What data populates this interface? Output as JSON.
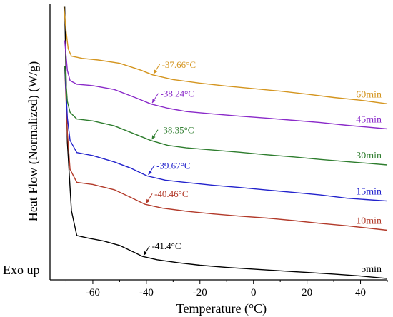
{
  "chart_data": {
    "type": "line",
    "xlabel": "Temperature (°C)",
    "ylabel": "Heat Flow (Normalized) (W/g)",
    "corner_note": "Exo up",
    "xlim": [
      -76,
      50
    ],
    "ylim": [
      0,
      10
    ],
    "x_ticks": [
      -60,
      -40,
      -20,
      0,
      20,
      40
    ],
    "x_tick_labels": [
      "-60",
      "-40",
      "-20",
      "0",
      "20",
      "40"
    ],
    "y_tick_labels": [],
    "grid": false,
    "series": [
      {
        "name": "5min",
        "color": "#000000",
        "glass_transition": -41.4,
        "annotation": "-41.4°C",
        "points": [
          [
            -70.5,
            9.91
          ],
          [
            -69.5,
            4.99
          ],
          [
            -68,
            2.51
          ],
          [
            -66,
            1.61
          ],
          [
            -62,
            1.52
          ],
          [
            -56,
            1.41
          ],
          [
            -50,
            1.25
          ],
          [
            -45,
            1.02
          ],
          [
            -41.4,
            0.85
          ],
          [
            -36,
            0.73
          ],
          [
            -28,
            0.62
          ],
          [
            -20,
            0.53
          ],
          [
            -10,
            0.45
          ],
          [
            0,
            0.39
          ],
          [
            10,
            0.33
          ],
          [
            20,
            0.27
          ],
          [
            30,
            0.21
          ],
          [
            40,
            0.14
          ],
          [
            50,
            0.05
          ]
        ]
      },
      {
        "name": "10min",
        "color": "#b23a2a",
        "glass_transition": -40.46,
        "annotation": "-40.46°C",
        "points": [
          [
            -70.5,
            7.75
          ],
          [
            -69.5,
            5.34
          ],
          [
            -68.5,
            4.01
          ],
          [
            -66,
            3.54
          ],
          [
            -60,
            3.46
          ],
          [
            -52,
            3.27
          ],
          [
            -46,
            3.0
          ],
          [
            -40.46,
            2.74
          ],
          [
            -34,
            2.6
          ],
          [
            -25,
            2.49
          ],
          [
            -15,
            2.39
          ],
          [
            -5,
            2.31
          ],
          [
            5,
            2.24
          ],
          [
            15,
            2.15
          ],
          [
            25,
            2.05
          ],
          [
            35,
            1.96
          ],
          [
            50,
            1.8
          ]
        ]
      },
      {
        "name": "15min",
        "color": "#2222cc",
        "glass_transition": -39.67,
        "annotation": "-39.67°C",
        "points": [
          [
            -70.5,
            7.75
          ],
          [
            -69.5,
            5.88
          ],
          [
            -68.5,
            5.06
          ],
          [
            -66,
            4.62
          ],
          [
            -60,
            4.51
          ],
          [
            -52,
            4.28
          ],
          [
            -46,
            4.06
          ],
          [
            -39.67,
            3.77
          ],
          [
            -33,
            3.62
          ],
          [
            -25,
            3.53
          ],
          [
            -15,
            3.43
          ],
          [
            -5,
            3.35
          ],
          [
            5,
            3.26
          ],
          [
            15,
            3.17
          ],
          [
            25,
            3.08
          ],
          [
            35,
            2.96
          ],
          [
            50,
            2.86
          ]
        ]
      },
      {
        "name": "30min",
        "color": "#2e7d2e",
        "glass_transition": -38.35,
        "annotation": "-38.35°C",
        "points": [
          [
            -70.5,
            7.75
          ],
          [
            -69.5,
            6.48
          ],
          [
            -68.5,
            6.08
          ],
          [
            -66,
            5.84
          ],
          [
            -60,
            5.77
          ],
          [
            -52,
            5.59
          ],
          [
            -44,
            5.28
          ],
          [
            -38.35,
            5.06
          ],
          [
            -32,
            4.88
          ],
          [
            -25,
            4.79
          ],
          [
            -15,
            4.71
          ],
          [
            -5,
            4.63
          ],
          [
            5,
            4.54
          ],
          [
            15,
            4.46
          ],
          [
            25,
            4.37
          ],
          [
            35,
            4.29
          ],
          [
            50,
            4.17
          ]
        ]
      },
      {
        "name": "45min",
        "color": "#8a2ac9",
        "glass_transition": -38.24,
        "annotation": "-38.24°C",
        "points": [
          [
            -70.5,
            8.69
          ],
          [
            -69.5,
            7.61
          ],
          [
            -68.5,
            7.23
          ],
          [
            -66,
            7.1
          ],
          [
            -60,
            7.05
          ],
          [
            -52,
            6.91
          ],
          [
            -44,
            6.61
          ],
          [
            -38.24,
            6.38
          ],
          [
            -32,
            6.23
          ],
          [
            -25,
            6.11
          ],
          [
            -15,
            6.02
          ],
          [
            -5,
            5.94
          ],
          [
            5,
            5.87
          ],
          [
            15,
            5.79
          ],
          [
            25,
            5.71
          ],
          [
            35,
            5.61
          ],
          [
            50,
            5.48
          ]
        ]
      },
      {
        "name": "60min",
        "color": "#d4951f",
        "glass_transition": -37.66,
        "annotation": "-37.66°C",
        "points": [
          [
            -70.8,
            9.91
          ],
          [
            -70,
            9.03
          ],
          [
            -69.2,
            8.38
          ],
          [
            -68,
            8.12
          ],
          [
            -64,
            8.04
          ],
          [
            -58,
            7.98
          ],
          [
            -50,
            7.86
          ],
          [
            -42,
            7.61
          ],
          [
            -37.66,
            7.44
          ],
          [
            -30,
            7.27
          ],
          [
            -20,
            7.14
          ],
          [
            -10,
            7.03
          ],
          [
            0,
            6.94
          ],
          [
            10,
            6.85
          ],
          [
            20,
            6.74
          ],
          [
            30,
            6.62
          ],
          [
            40,
            6.52
          ],
          [
            50,
            6.39
          ]
        ]
      }
    ]
  }
}
